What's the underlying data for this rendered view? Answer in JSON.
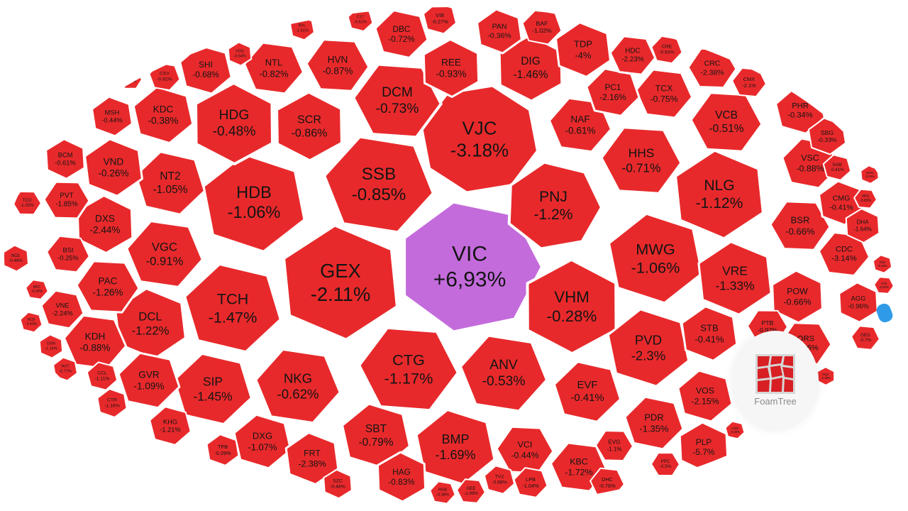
{
  "chart_data": {
    "type": "treemap",
    "series_unit": "%",
    "colors": {
      "negative": "#e8292b",
      "positive": "#c46bdc",
      "border": "#ffffff"
    },
    "cells": [
      {
        "code": "VIC",
        "change": "+6,93%",
        "sign": "up"
      },
      {
        "code": "VJC",
        "change": "-3.18%"
      },
      {
        "code": "SSB",
        "change": "-0.85%"
      },
      {
        "code": "PNJ",
        "change": "-1.2%"
      },
      {
        "code": "HDB",
        "change": "-1.06%"
      },
      {
        "code": "GEX",
        "change": "-2.11%"
      },
      {
        "code": "VHM",
        "change": "-0.28%"
      },
      {
        "code": "CTG",
        "change": "-1.17%"
      },
      {
        "code": "ANV",
        "change": "-0.53%"
      },
      {
        "code": "TCH",
        "change": "-1.47%"
      },
      {
        "code": "MWG",
        "change": "-1.06%"
      },
      {
        "code": "NLG",
        "change": "-1.12%"
      },
      {
        "code": "HDG",
        "change": "-0.48%"
      },
      {
        "code": "DCM",
        "change": "-0.73%"
      },
      {
        "code": "NKG",
        "change": "-0.62%"
      },
      {
        "code": "SIP",
        "change": "-1.45%"
      },
      {
        "code": "PVD",
        "change": "-2.3%"
      },
      {
        "code": "VRE",
        "change": "-1.33%"
      },
      {
        "code": "SCR",
        "change": "-0.86%"
      },
      {
        "code": "HHS",
        "change": "-0.71%"
      },
      {
        "code": "VGC",
        "change": "-0.91%"
      },
      {
        "code": "NT2",
        "change": "-1.05%"
      },
      {
        "code": "BMP",
        "change": "-1.69%"
      },
      {
        "code": "DCL",
        "change": "-1.22%"
      },
      {
        "code": "DIG",
        "change": "-1.46%"
      },
      {
        "code": "VCB",
        "change": "-0.51%"
      },
      {
        "code": "NAF",
        "change": "-0.61%"
      },
      {
        "code": "EVF",
        "change": "-0.41%"
      },
      {
        "code": "SBT",
        "change": "-0.79%"
      },
      {
        "code": "TDP",
        "change": "-4%"
      },
      {
        "code": "REE",
        "change": "-0.93%"
      },
      {
        "code": "HVN",
        "change": "-0.87%"
      },
      {
        "code": "NTL",
        "change": "-0.82%"
      },
      {
        "code": "DBC",
        "change": "-0.72%"
      },
      {
        "code": "KDC",
        "change": "-0.38%"
      },
      {
        "code": "VND",
        "change": "-0.26%"
      },
      {
        "code": "DXS",
        "change": "-2.44%"
      },
      {
        "code": "PAC",
        "change": "-1.26%"
      },
      {
        "code": "KDH",
        "change": "-0.88%"
      },
      {
        "code": "GVR",
        "change": "-1.09%"
      },
      {
        "code": "DXG",
        "change": "-1.07%"
      },
      {
        "code": "FRT",
        "change": "-2.38%"
      },
      {
        "code": "HAG",
        "change": "-0.83%"
      },
      {
        "code": "VCI",
        "change": "-0.44%"
      },
      {
        "code": "KBC",
        "change": "-1.72%"
      },
      {
        "code": "PDR",
        "change": "-1.35%"
      },
      {
        "code": "VOS",
        "change": "-2.15%"
      },
      {
        "code": "STB",
        "change": "-0.41%"
      },
      {
        "code": "POW",
        "change": "-0.66%"
      },
      {
        "code": "BSR",
        "change": "-0.66%"
      },
      {
        "code": "TCX",
        "change": "-0.75%"
      },
      {
        "code": "PC1",
        "change": "-2.16%"
      },
      {
        "code": "SHI",
        "change": "-0.68%"
      },
      {
        "code": "PAN",
        "change": "-0.36%"
      },
      {
        "code": "PLP",
        "change": "-5.7%"
      },
      {
        "code": "ORS",
        "change": "-0.36%"
      },
      {
        "code": "CDC",
        "change": "-3.14%"
      },
      {
        "code": "VSC",
        "change": "-0.88%"
      },
      {
        "code": "PHR",
        "change": "-0.34%"
      },
      {
        "code": "CMG",
        "change": "-0.41%"
      },
      {
        "code": "AGG",
        "change": "-0.96%"
      },
      {
        "code": "CRC",
        "change": "-2.38%"
      },
      {
        "code": "HDC",
        "change": "-2.23%"
      },
      {
        "code": "BAF",
        "change": "-1.02%"
      },
      {
        "code": "VIB",
        "change": "-0.27%"
      },
      {
        "code": "MSH",
        "change": "-0.44%"
      },
      {
        "code": "BCM",
        "change": "-0.61%"
      },
      {
        "code": "PVT",
        "change": "-1.85%"
      },
      {
        "code": "BSI",
        "change": "-0.25%"
      },
      {
        "code": "VNE",
        "change": "-2.24%"
      },
      {
        "code": "KHG",
        "change": "-1.21%"
      },
      {
        "code": "SBG",
        "change": "-0.33%"
      },
      {
        "code": "DHA",
        "change": "-1.64%"
      },
      {
        "code": "EVG",
        "change": "-1.1%"
      },
      {
        "code": "DHC",
        "change": "-0.76%"
      },
      {
        "code": "LPB",
        "change": "-1.04%"
      },
      {
        "code": "TV2",
        "change": "-0.68%"
      },
      {
        "code": "TPB",
        "change": "-0.29%"
      },
      {
        "code": "SZC",
        "change": "-0.48%"
      },
      {
        "code": "PTB",
        "change": "-0.97%"
      },
      {
        "code": "GEG",
        "change": "-0.7%"
      },
      {
        "code": "CSV",
        "change": "-0.82%"
      },
      {
        "code": "CCL",
        "change": "-1.11%"
      },
      {
        "code": "CTR",
        "change": "-1.16%"
      },
      {
        "code": "NO1",
        "change": "-0.46%"
      },
      {
        "code": "TCO",
        "change": "-1.02%"
      },
      {
        "code": "CMX",
        "change": "-2.1%"
      },
      {
        "code": "CRE",
        "change": "-0.63%"
      },
      {
        "code": "SAM",
        "change": "-0.41%"
      },
      {
        "code": "HUT",
        "change": "-0.77%"
      },
      {
        "code": "DSN",
        "change": "-1.14%"
      },
      {
        "code": "PPC",
        "change": "-0.5%"
      },
      {
        "code": "GEE",
        "change": "-1.99%"
      },
      {
        "code": "MSB",
        "change": "-0.38%"
      },
      {
        "code": "C17",
        "change": "-0.61%"
      },
      {
        "code": "RVL",
        "change": "-1.61%"
      },
      {
        "code": "VDS",
        "change": "-0.54%"
      },
      {
        "code": "LDG",
        "change": "-0.35%"
      },
      {
        "code": "VPG",
        "change": "-0.83%"
      },
      {
        "code": "BFC",
        "change": "-0.35%"
      },
      {
        "code": "HCD",
        "change": "-1.41%"
      },
      {
        "code": "D2D",
        "change": "-0.39%"
      },
      {
        "code": "DHM",
        "change": "-3.04%"
      },
      {
        "code": "KSB",
        "change": "-0.95%"
      },
      {
        "code": "VTB",
        "change": "-0.92%"
      },
      {
        "code": "IJC",
        "change": "-0.84%"
      },
      {
        "code": "CSM",
        "change": "-0.38%"
      },
      {
        "code": "FCN",
        "change": "-0.77%"
      },
      {
        "code": "TLH",
        "change": "-1.25%"
      },
      {
        "code": "HQC",
        "change": "-2.38%"
      },
      {
        "code": "PET",
        "change": "-0.65%"
      }
    ]
  },
  "branding": {
    "label": "FoamTree",
    "icon": "foamtree-logo-icon"
  }
}
